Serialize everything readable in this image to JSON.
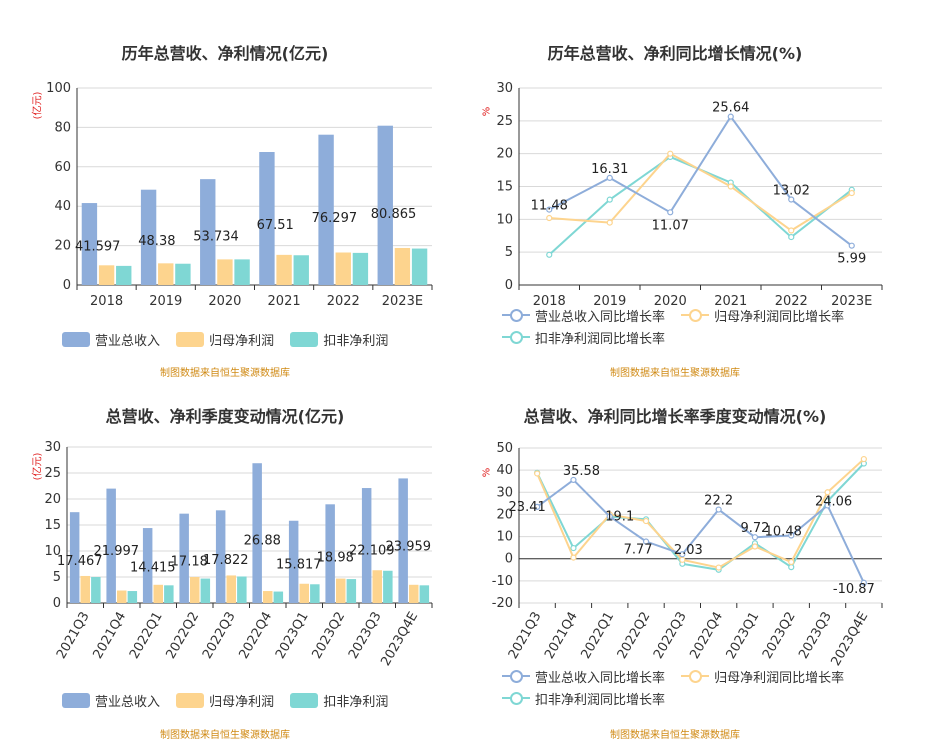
{
  "colors": {
    "revenue": "#8eadda",
    "net_profit": "#fdd48e",
    "deducted_profit": "#7fd7d4",
    "source": "#d08a14",
    "unit": "#e01e1e"
  },
  "source_text": "制图数据来自恒生聚源数据库",
  "chart_data": [
    {
      "type": "bar",
      "title": "历年总营收、净利情况(亿元)",
      "ylabel": "(亿元)",
      "categories": [
        "2018",
        "2019",
        "2020",
        "2021",
        "2022",
        "2023E"
      ],
      "ylim": [
        0,
        100
      ],
      "yticks": [
        0,
        20,
        40,
        60,
        80,
        100
      ],
      "series": [
        {
          "name": "营业总收入",
          "values": [
            41.597,
            48.38,
            53.734,
            67.51,
            76.297,
            80.865
          ],
          "labels": [
            "41.597",
            "48.38",
            "53.734",
            "67.51",
            "76.297",
            "80.865"
          ]
        },
        {
          "name": "归母净利润",
          "values": [
            10.0,
            11.0,
            13.0,
            15.3,
            16.5,
            18.8
          ]
        },
        {
          "name": "扣非净利润",
          "values": [
            9.7,
            10.8,
            13.0,
            15.1,
            16.3,
            18.5
          ]
        }
      ],
      "legend": "bottom"
    },
    {
      "type": "line",
      "title": "历年总营收、净利同比增长情况(%)",
      "ylabel": "%",
      "categories": [
        "2018",
        "2019",
        "2020",
        "2021",
        "2022",
        "2023E"
      ],
      "ylim": [
        0,
        30
      ],
      "yticks": [
        0,
        5,
        10,
        15,
        20,
        25,
        30
      ],
      "series": [
        {
          "name": "营业总收入同比增长率",
          "values": [
            11.48,
            16.31,
            11.07,
            25.64,
            13.02,
            5.99
          ],
          "labels": [
            "11.48",
            "16.31",
            "11.07",
            "25.64",
            "13.02",
            "5.99"
          ]
        },
        {
          "name": "归母净利润同比增长率",
          "values": [
            10.2,
            9.5,
            20.0,
            15.0,
            8.3,
            14.0
          ]
        },
        {
          "name": "扣非净利润同比增长率",
          "values": [
            4.6,
            13.0,
            19.5,
            15.6,
            7.3,
            14.5
          ]
        }
      ],
      "legend": "bottom"
    },
    {
      "type": "bar",
      "title": "总营收、净利季度变动情况(亿元)",
      "ylabel": "(亿元)",
      "categories": [
        "2021Q3",
        "2021Q4",
        "2022Q1",
        "2022Q2",
        "2022Q3",
        "2022Q4",
        "2023Q1",
        "2023Q2",
        "2023Q3",
        "2023Q4E"
      ],
      "ylim": [
        0,
        30
      ],
      "yticks": [
        0,
        5,
        10,
        15,
        20,
        25,
        30
      ],
      "series": [
        {
          "name": "营业总收入",
          "values": [
            17.467,
            21.997,
            14.415,
            17.18,
            17.822,
            26.88,
            15.817,
            18.98,
            22.109,
            23.959
          ],
          "labels": [
            "17.467",
            "21.997",
            "14.415",
            "17.18",
            "17.822",
            "26.88",
            "15.817",
            "18.98",
            "22.109",
            "23.959"
          ]
        },
        {
          "name": "归母净利润",
          "values": [
            5.2,
            2.4,
            3.5,
            5.0,
            5.3,
            2.3,
            3.7,
            4.7,
            6.3,
            3.5
          ]
        },
        {
          "name": "扣非净利润",
          "values": [
            5.0,
            2.3,
            3.4,
            4.7,
            5.1,
            2.2,
            3.6,
            4.6,
            6.2,
            3.4
          ]
        }
      ],
      "legend": "bottom"
    },
    {
      "type": "line",
      "title": "总营收、净利同比增长率季度变动情况(%)",
      "ylabel": "%",
      "categories": [
        "2021Q3",
        "2021Q4",
        "2022Q1",
        "2022Q2",
        "2022Q3",
        "2022Q4",
        "2023Q1",
        "2023Q2",
        "2023Q3",
        "2023Q4E"
      ],
      "ylim": [
        -20,
        50
      ],
      "yticks": [
        -20,
        -10,
        0,
        10,
        20,
        30,
        40,
        50
      ],
      "series": [
        {
          "name": "营业总收入同比增长率",
          "values": [
            23.41,
            35.58,
            19.1,
            7.77,
            2.03,
            22.2,
            9.72,
            10.48,
            24.06,
            -10.87
          ],
          "labels": [
            "23.41",
            "35.58",
            "19.1",
            "7.77",
            "2.03",
            "22.2",
            "9.72",
            "10.48",
            "24.06",
            "-10.87"
          ]
        },
        {
          "name": "归母净利润同比增长率",
          "values": [
            38.5,
            0.5,
            20.0,
            17.0,
            -0.5,
            -4.0,
            5.5,
            -1.5,
            30.0,
            45.0
          ]
        },
        {
          "name": "扣非净利润同比增长率",
          "values": [
            38.8,
            4.8,
            19.0,
            17.8,
            -2.3,
            -5.0,
            7.0,
            -3.8,
            26.0,
            43.0
          ]
        }
      ],
      "legend": "bottom"
    }
  ]
}
